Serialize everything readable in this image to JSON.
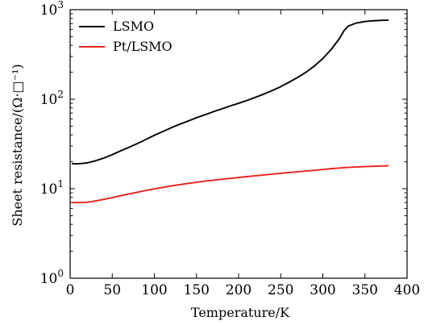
{
  "chart_data": {
    "type": "line",
    "xlabel": "Temperature/K",
    "ylabel": "Sheet resistance/(Ω·□⁻¹)",
    "xlim": [
      0,
      400
    ],
    "ylim": [
      1,
      1000
    ],
    "yscale": "log",
    "grid": false,
    "legend": "top-left",
    "x_ticks": [
      "0",
      "50",
      "100",
      "150",
      "200",
      "250",
      "300",
      "350",
      "400"
    ],
    "y_ticks": [
      {
        "value": 1,
        "base": "10",
        "exp": "0"
      },
      {
        "value": 10,
        "base": "10",
        "exp": "1"
      },
      {
        "value": 100,
        "base": "10",
        "exp": "2"
      },
      {
        "value": 1000,
        "base": "10",
        "exp": "3"
      }
    ],
    "series": [
      {
        "name": "LSMO",
        "color": "#000000",
        "points": [
          [
            2,
            19
          ],
          [
            10,
            19
          ],
          [
            20,
            19.4
          ],
          [
            30,
            20.5
          ],
          [
            40,
            22
          ],
          [
            50,
            24
          ],
          [
            60,
            26.5
          ],
          [
            70,
            29
          ],
          [
            80,
            32
          ],
          [
            90,
            35.5
          ],
          [
            100,
            39.5
          ],
          [
            110,
            43.5
          ],
          [
            120,
            48
          ],
          [
            130,
            52.5
          ],
          [
            140,
            57
          ],
          [
            150,
            62
          ],
          [
            160,
            67
          ],
          [
            170,
            72.5
          ],
          [
            180,
            78
          ],
          [
            190,
            84
          ],
          [
            200,
            90
          ],
          [
            210,
            97
          ],
          [
            220,
            105
          ],
          [
            230,
            114
          ],
          [
            240,
            125
          ],
          [
            250,
            138
          ],
          [
            260,
            155
          ],
          [
            270,
            175
          ],
          [
            280,
            200
          ],
          [
            290,
            235
          ],
          [
            300,
            285
          ],
          [
            310,
            360
          ],
          [
            320,
            480
          ],
          [
            325,
            580
          ],
          [
            330,
            655
          ],
          [
            340,
            710
          ],
          [
            350,
            738
          ],
          [
            360,
            752
          ],
          [
            370,
            760
          ],
          [
            378,
            763
          ]
        ]
      },
      {
        "name": "Pt/LSMO",
        "color": "#e8201e",
        "points": [
          [
            2,
            7
          ],
          [
            10,
            7
          ],
          [
            20,
            7.05
          ],
          [
            30,
            7.3
          ],
          [
            40,
            7.6
          ],
          [
            50,
            7.95
          ],
          [
            60,
            8.35
          ],
          [
            70,
            8.75
          ],
          [
            80,
            9.15
          ],
          [
            90,
            9.55
          ],
          [
            100,
            9.95
          ],
          [
            110,
            10.35
          ],
          [
            120,
            10.75
          ],
          [
            130,
            11.1
          ],
          [
            140,
            11.45
          ],
          [
            150,
            11.8
          ],
          [
            160,
            12.15
          ],
          [
            170,
            12.45
          ],
          [
            180,
            12.75
          ],
          [
            190,
            13.05
          ],
          [
            200,
            13.35
          ],
          [
            210,
            13.65
          ],
          [
            220,
            13.95
          ],
          [
            230,
            14.25
          ],
          [
            240,
            14.55
          ],
          [
            250,
            14.85
          ],
          [
            260,
            15.15
          ],
          [
            270,
            15.45
          ],
          [
            280,
            15.75
          ],
          [
            290,
            16.05
          ],
          [
            300,
            16.4
          ],
          [
            310,
            16.75
          ],
          [
            320,
            17.05
          ],
          [
            330,
            17.3
          ],
          [
            340,
            17.5
          ],
          [
            350,
            17.65
          ],
          [
            360,
            17.8
          ],
          [
            370,
            17.95
          ],
          [
            378,
            18.05
          ]
        ]
      }
    ]
  }
}
